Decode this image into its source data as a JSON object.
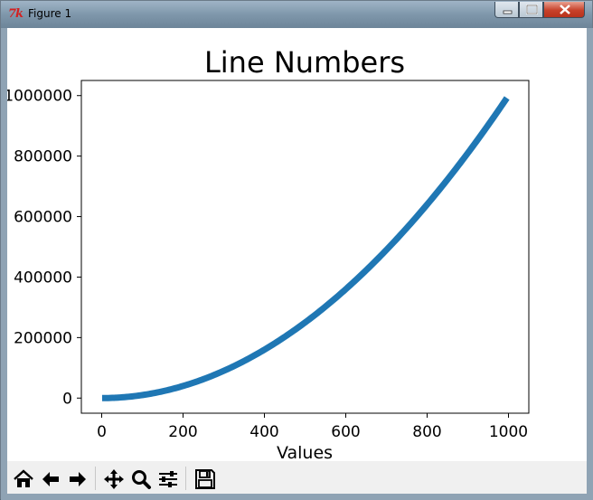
{
  "window": {
    "title": "Figure 1",
    "app_icon_text": "7k",
    "controls": [
      "minimize-icon",
      "maximize-icon",
      "close-icon"
    ]
  },
  "toolbar": {
    "buttons": [
      {
        "name": "home-button",
        "icon": "home-icon"
      },
      {
        "name": "back-button",
        "icon": "arrow-left-icon"
      },
      {
        "name": "forward-button",
        "icon": "arrow-right-icon"
      },
      {
        "name": "pan-button",
        "icon": "move-icon"
      },
      {
        "name": "zoom-button",
        "icon": "magnifier-icon"
      },
      {
        "name": "configure-subplots-button",
        "icon": "sliders-icon"
      },
      {
        "name": "save-button",
        "icon": "floppy-disk-icon"
      }
    ]
  },
  "chart_data": {
    "type": "line",
    "title": "Line Numbers",
    "xlabel": "Values",
    "ylabel": "",
    "xlim": [
      -50,
      1050
    ],
    "ylim": [
      -50000,
      1050000
    ],
    "x_ticks": [
      0,
      200,
      400,
      600,
      800,
      1000
    ],
    "x_tick_labels": [
      "0",
      "200",
      "400",
      "600",
      "800",
      "1000"
    ],
    "y_ticks": [
      0,
      200000,
      400000,
      600000,
      800000,
      1000000
    ],
    "y_tick_labels": [
      "0",
      "200000",
      "400000",
      "600000",
      "800000",
      "1000000"
    ],
    "series": [
      {
        "function": "y = x^2",
        "x_start": 1,
        "x_end": 1000,
        "color": "#1f77b4"
      }
    ],
    "grid": false
  }
}
